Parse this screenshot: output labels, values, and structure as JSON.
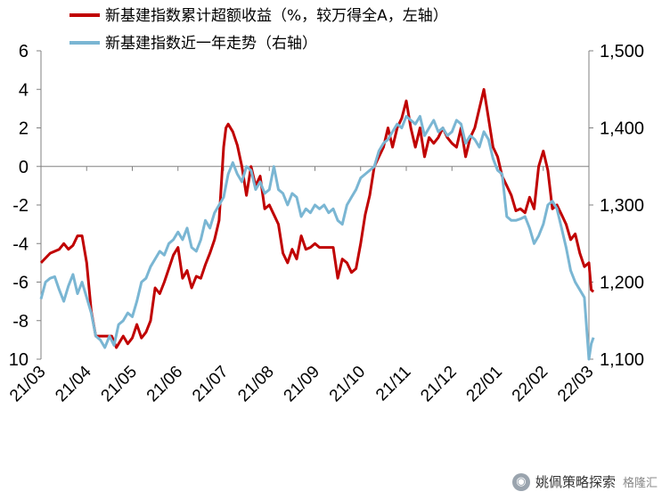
{
  "legend": [
    {
      "label": "新基建指数累计超额收益（%，较万得全A，左轴）",
      "color": "#C00000"
    },
    {
      "label": "新基建指数近一年走势（右轴）",
      "color": "#7AB6D3"
    }
  ],
  "watermark": {
    "text": "姚佩策略探索",
    "sub": "格隆汇"
  },
  "chart_data": {
    "type": "line",
    "x_ticks": [
      "21/03",
      "21/04",
      "21/05",
      "21/06",
      "21/07",
      "21/08",
      "21/09",
      "21/10",
      "21/11",
      "21/12",
      "22/01",
      "22/02",
      "22/03"
    ],
    "left_axis": {
      "ticks": [
        "6",
        "4",
        "2",
        "0",
        "-2",
        "-4",
        "-6",
        "-8",
        "10"
      ],
      "ylim": [
        -10,
        6
      ]
    },
    "right_axis": {
      "ticks": [
        "1,500",
        "1,400",
        "1,300",
        "1,200",
        "1,100"
      ],
      "ylim": [
        1100,
        1500
      ]
    },
    "series": [
      {
        "name": "新基建指数累计超额收益（%，较万得全A，左轴）",
        "axis": "left",
        "color": "#C00000",
        "points": [
          [
            0.0,
            -5.0
          ],
          [
            0.2,
            -4.5
          ],
          [
            0.4,
            -4.3
          ],
          [
            0.5,
            -4.0
          ],
          [
            0.6,
            -4.3
          ],
          [
            0.7,
            -4.1
          ],
          [
            0.8,
            -3.6
          ],
          [
            0.9,
            -3.6
          ],
          [
            1.0,
            -5.0
          ],
          [
            1.1,
            -7.5
          ],
          [
            1.2,
            -8.8
          ],
          [
            1.4,
            -8.8
          ],
          [
            1.55,
            -8.8
          ],
          [
            1.65,
            -9.4
          ],
          [
            1.8,
            -8.8
          ],
          [
            1.9,
            -9.2
          ],
          [
            2.0,
            -8.9
          ],
          [
            2.1,
            -8.2
          ],
          [
            2.2,
            -8.9
          ],
          [
            2.3,
            -8.6
          ],
          [
            2.4,
            -8.0
          ],
          [
            2.5,
            -6.3
          ],
          [
            2.6,
            -6.6
          ],
          [
            2.7,
            -6.0
          ],
          [
            2.8,
            -5.3
          ],
          [
            2.9,
            -4.6
          ],
          [
            3.0,
            -4.2
          ],
          [
            3.1,
            -5.8
          ],
          [
            3.2,
            -5.4
          ],
          [
            3.3,
            -6.3
          ],
          [
            3.4,
            -5.7
          ],
          [
            3.5,
            -5.8
          ],
          [
            3.6,
            -5.1
          ],
          [
            3.7,
            -4.5
          ],
          [
            3.8,
            -3.8
          ],
          [
            3.9,
            -2.8
          ],
          [
            4.0,
            1.0
          ],
          [
            4.05,
            2.0
          ],
          [
            4.1,
            2.2
          ],
          [
            4.2,
            1.8
          ],
          [
            4.3,
            1.1
          ],
          [
            4.4,
            0.0
          ],
          [
            4.5,
            -1.5
          ],
          [
            4.6,
            0.0
          ],
          [
            4.7,
            -1.0
          ],
          [
            4.8,
            -0.5
          ],
          [
            4.9,
            -2.2
          ],
          [
            5.0,
            -2.0
          ],
          [
            5.1,
            -2.5
          ],
          [
            5.2,
            -3.0
          ],
          [
            5.3,
            -4.5
          ],
          [
            5.4,
            -5.0
          ],
          [
            5.5,
            -4.3
          ],
          [
            5.6,
            -4.8
          ],
          [
            5.7,
            -3.6
          ],
          [
            5.8,
            -4.3
          ],
          [
            5.9,
            -4.2
          ],
          [
            6.0,
            -4.0
          ],
          [
            6.1,
            -4.2
          ],
          [
            6.2,
            -4.2
          ],
          [
            6.3,
            -4.2
          ],
          [
            6.4,
            -4.2
          ],
          [
            6.5,
            -5.8
          ],
          [
            6.6,
            -4.8
          ],
          [
            6.7,
            -5.0
          ],
          [
            6.8,
            -5.5
          ],
          [
            6.9,
            -5.3
          ],
          [
            7.0,
            -4.0
          ],
          [
            7.1,
            -2.5
          ],
          [
            7.2,
            -1.5
          ],
          [
            7.3,
            0.0
          ],
          [
            7.4,
            0.5
          ],
          [
            7.5,
            1.0
          ],
          [
            7.6,
            2.0
          ],
          [
            7.7,
            1.0
          ],
          [
            7.8,
            2.0
          ],
          [
            7.9,
            2.5
          ],
          [
            8.0,
            3.4
          ],
          [
            8.1,
            2.0
          ],
          [
            8.2,
            1.0
          ],
          [
            8.3,
            2.0
          ],
          [
            8.4,
            0.5
          ],
          [
            8.5,
            1.5
          ],
          [
            8.6,
            1.2
          ],
          [
            8.7,
            1.5
          ],
          [
            8.8,
            2.0
          ],
          [
            8.9,
            1.5
          ],
          [
            9.0,
            1.2
          ],
          [
            9.1,
            1.0
          ],
          [
            9.2,
            2.0
          ],
          [
            9.3,
            0.5
          ],
          [
            9.4,
            1.5
          ],
          [
            9.5,
            2.0
          ],
          [
            9.6,
            3.0
          ],
          [
            9.7,
            4.0
          ],
          [
            9.8,
            2.5
          ],
          [
            9.9,
            1.0
          ],
          [
            10.0,
            0.5
          ],
          [
            10.1,
            -0.5
          ],
          [
            10.2,
            -1.0
          ],
          [
            10.3,
            -1.5
          ],
          [
            10.4,
            -2.3
          ],
          [
            10.5,
            -2.2
          ],
          [
            10.6,
            -2.4
          ],
          [
            10.7,
            -1.6
          ],
          [
            10.8,
            -2.2
          ],
          [
            10.9,
            0.0
          ],
          [
            11.0,
            0.8
          ],
          [
            11.1,
            -0.2
          ],
          [
            11.2,
            -2.2
          ],
          [
            11.3,
            -2.0
          ],
          [
            11.4,
            -2.5
          ],
          [
            11.5,
            -3.0
          ],
          [
            11.6,
            -3.8
          ],
          [
            11.7,
            -3.5
          ],
          [
            11.8,
            -4.5
          ],
          [
            11.9,
            -5.2
          ],
          [
            12.0,
            -5.0
          ],
          [
            12.05,
            -6.4
          ],
          [
            12.1,
            -6.5
          ]
        ]
      },
      {
        "name": "新基建指数近一年走势（右轴）",
        "axis": "right",
        "color": "#7AB6D3",
        "points": [
          [
            0.0,
            1178
          ],
          [
            0.1,
            1200
          ],
          [
            0.2,
            1205
          ],
          [
            0.3,
            1207
          ],
          [
            0.4,
            1190
          ],
          [
            0.5,
            1175
          ],
          [
            0.6,
            1195
          ],
          [
            0.7,
            1210
          ],
          [
            0.8,
            1185
          ],
          [
            0.9,
            1200
          ],
          [
            1.0,
            1180
          ],
          [
            1.1,
            1160
          ],
          [
            1.2,
            1130
          ],
          [
            1.3,
            1125
          ],
          [
            1.4,
            1115
          ],
          [
            1.5,
            1130
          ],
          [
            1.6,
            1118
          ],
          [
            1.7,
            1145
          ],
          [
            1.8,
            1150
          ],
          [
            1.9,
            1160
          ],
          [
            2.0,
            1155
          ],
          [
            2.1,
            1175
          ],
          [
            2.2,
            1200
          ],
          [
            2.3,
            1205
          ],
          [
            2.4,
            1220
          ],
          [
            2.5,
            1230
          ],
          [
            2.6,
            1240
          ],
          [
            2.7,
            1235
          ],
          [
            2.8,
            1250
          ],
          [
            2.9,
            1255
          ],
          [
            3.0,
            1265
          ],
          [
            3.1,
            1255
          ],
          [
            3.2,
            1270
          ],
          [
            3.3,
            1245
          ],
          [
            3.4,
            1240
          ],
          [
            3.5,
            1255
          ],
          [
            3.6,
            1280
          ],
          [
            3.7,
            1270
          ],
          [
            3.8,
            1290
          ],
          [
            3.9,
            1300
          ],
          [
            4.0,
            1310
          ],
          [
            4.1,
            1340
          ],
          [
            4.2,
            1355
          ],
          [
            4.3,
            1340
          ],
          [
            4.4,
            1330
          ],
          [
            4.5,
            1350
          ],
          [
            4.6,
            1345
          ],
          [
            4.7,
            1320
          ],
          [
            4.8,
            1330
          ],
          [
            4.9,
            1315
          ],
          [
            5.0,
            1320
          ],
          [
            5.1,
            1350
          ],
          [
            5.2,
            1320
          ],
          [
            5.3,
            1315
          ],
          [
            5.4,
            1300
          ],
          [
            5.5,
            1315
          ],
          [
            5.6,
            1310
          ],
          [
            5.7,
            1285
          ],
          [
            5.8,
            1295
          ],
          [
            5.9,
            1290
          ],
          [
            6.0,
            1300
          ],
          [
            6.1,
            1295
          ],
          [
            6.2,
            1300
          ],
          [
            6.3,
            1290
          ],
          [
            6.4,
            1295
          ],
          [
            6.5,
            1280
          ],
          [
            6.6,
            1275
          ],
          [
            6.7,
            1300
          ],
          [
            6.8,
            1310
          ],
          [
            6.9,
            1320
          ],
          [
            7.0,
            1335
          ],
          [
            7.1,
            1340
          ],
          [
            7.2,
            1345
          ],
          [
            7.3,
            1350
          ],
          [
            7.4,
            1370
          ],
          [
            7.5,
            1380
          ],
          [
            7.6,
            1385
          ],
          [
            7.7,
            1395
          ],
          [
            7.8,
            1405
          ],
          [
            7.9,
            1400
          ],
          [
            8.0,
            1415
          ],
          [
            8.1,
            1410
          ],
          [
            8.2,
            1405
          ],
          [
            8.3,
            1415
          ],
          [
            8.4,
            1390
          ],
          [
            8.5,
            1400
          ],
          [
            8.6,
            1410
          ],
          [
            8.7,
            1395
          ],
          [
            8.8,
            1400
          ],
          [
            8.9,
            1390
          ],
          [
            9.0,
            1395
          ],
          [
            9.1,
            1410
          ],
          [
            9.2,
            1405
          ],
          [
            9.3,
            1380
          ],
          [
            9.4,
            1390
          ],
          [
            9.5,
            1385
          ],
          [
            9.6,
            1375
          ],
          [
            9.7,
            1395
          ],
          [
            9.8,
            1385
          ],
          [
            9.9,
            1360
          ],
          [
            10.0,
            1345
          ],
          [
            10.1,
            1340
          ],
          [
            10.2,
            1285
          ],
          [
            10.3,
            1280
          ],
          [
            10.4,
            1280
          ],
          [
            10.5,
            1282
          ],
          [
            10.6,
            1285
          ],
          [
            10.7,
            1270
          ],
          [
            10.8,
            1250
          ],
          [
            10.9,
            1260
          ],
          [
            11.0,
            1275
          ],
          [
            11.1,
            1300
          ],
          [
            11.2,
            1305
          ],
          [
            11.3,
            1295
          ],
          [
            11.4,
            1270
          ],
          [
            11.5,
            1245
          ],
          [
            11.6,
            1215
          ],
          [
            11.7,
            1200
          ],
          [
            11.8,
            1190
          ],
          [
            11.9,
            1180
          ],
          [
            12.0,
            1100
          ],
          [
            12.05,
            1120
          ],
          [
            12.1,
            1128
          ]
        ]
      }
    ],
    "zero_line": 0
  }
}
